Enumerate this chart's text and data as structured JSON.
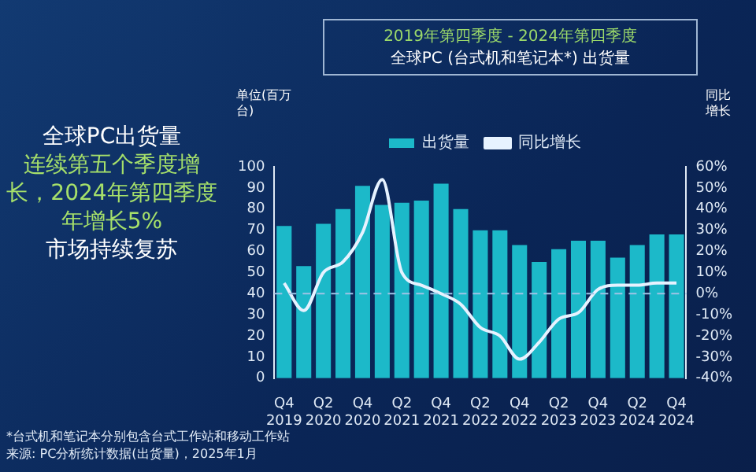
{
  "chart_data": {
    "type": "bar",
    "title": "2019年第四季度 - 2024年第四季度",
    "subtitle": "全球PC (台式机和笔记本*) 出货量",
    "ylabel": "单位(百万台)",
    "y2label": "同比增长",
    "annotations": [
      "全球PC出货量",
      "连续第五个季度增长，2024年第四季度年增长5%",
      "市场持续复苏",
      "*台式机和笔记本分别包含台式工作站和移动工作站",
      "来源: PC分析统计数据(出货量)，2025年1月"
    ],
    "categories": [
      "Q4 2019",
      null,
      "Q2 2020",
      null,
      "Q4 2020",
      null,
      "Q2 2021",
      null,
      "Q4 2021",
      null,
      "Q2 2022",
      null,
      "Q4 2022",
      null,
      "Q2 2023",
      null,
      "Q4 2023",
      null,
      "Q2 2024",
      null,
      "Q4 2024"
    ],
    "series": [
      {
        "name": "出货量",
        "color": "#1cb9c9",
        "values": [
          72,
          53,
          73,
          80,
          91,
          82,
          83,
          84,
          92,
          80,
          70,
          70,
          63,
          55,
          61,
          65,
          65,
          57,
          63,
          68,
          68
        ]
      },
      {
        "name": "同比增长",
        "type": "line",
        "axis": "y2",
        "color": "#e6f2ff",
        "values": [
          5,
          -8,
          10,
          15,
          29,
          54,
          10,
          4,
          0,
          -5,
          -16,
          -20,
          -31,
          -23,
          -12,
          -9,
          2,
          4,
          4,
          5,
          5
        ]
      }
    ],
    "ylim": [
      0,
      100
    ],
    "yticks": [
      0,
      10,
      20,
      30,
      40,
      50,
      60,
      70,
      80,
      90,
      100
    ],
    "y2lim": [
      -40,
      60
    ],
    "y2ticks": [
      {
        "value": -40,
        "label": "-40%"
      },
      {
        "value": -30,
        "label": "-30%"
      },
      {
        "value": -20,
        "label": "-20%"
      },
      {
        "value": -10,
        "label": "-10%"
      },
      {
        "value": 0,
        "label": "0%"
      },
      {
        "value": 10,
        "label": "10%"
      },
      {
        "value": 20,
        "label": "20%"
      },
      {
        "value": 30,
        "label": "30%"
      },
      {
        "value": 40,
        "label": "40%"
      },
      {
        "value": 50,
        "label": "50%"
      },
      {
        "value": 60,
        "label": "60%"
      }
    ],
    "ref_lines": [
      {
        "axis": "y2",
        "value": 0,
        "color": "#9fc3e6",
        "line_style": "dashed"
      }
    ],
    "grid": false,
    "legend": "top",
    "marker": "none",
    "line_style": "solid"
  }
}
